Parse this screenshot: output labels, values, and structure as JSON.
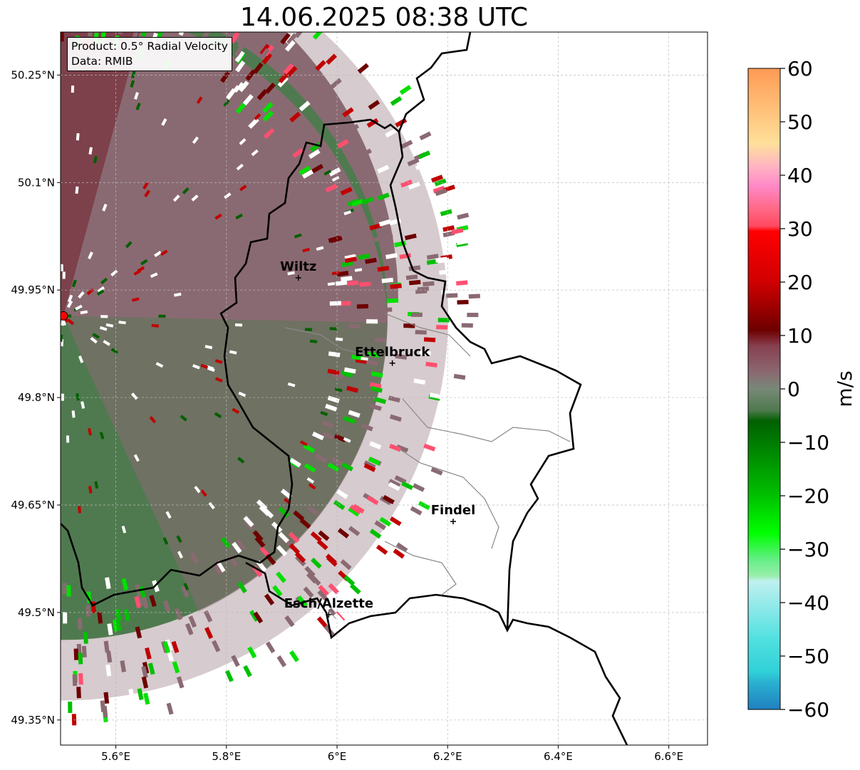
{
  "title": "14.06.2025 08:38 UTC",
  "info": {
    "product": "Product: 0.5° Radial Velocity",
    "data": "Data: RMIB"
  },
  "map": {
    "lon_range": [
      5.5,
      6.67
    ],
    "lat_range": [
      49.315,
      50.31
    ],
    "lon_ticks": [
      {
        "value": 5.6,
        "label": "5.6°E"
      },
      {
        "value": 5.8,
        "label": "5.8°E"
      },
      {
        "value": 6.0,
        "label": "6°E"
      },
      {
        "value": 6.2,
        "label": "6.2°E"
      },
      {
        "value": 6.4,
        "label": "6.4°E"
      },
      {
        "value": 6.6,
        "label": "6.6°E"
      }
    ],
    "lat_ticks": [
      {
        "value": 50.25,
        "label": "50.25°N"
      },
      {
        "value": 50.1,
        "label": "50.1°N"
      },
      {
        "value": 49.95,
        "label": "49.95°N"
      },
      {
        "value": 49.8,
        "label": "49.8°N"
      },
      {
        "value": 49.65,
        "label": "49.65°N"
      },
      {
        "value": 49.5,
        "label": "49.5°N"
      },
      {
        "value": 49.35,
        "label": "49.35°N"
      }
    ],
    "radar_site": {
      "lon": 5.505,
      "lat": 49.914
    },
    "cities": [
      {
        "name": "Wiltz",
        "lon": 5.93,
        "lat": 49.967
      },
      {
        "name": "Ettelbruck",
        "lon": 6.1,
        "lat": 49.848
      },
      {
        "name": "Findel",
        "lon": 6.21,
        "lat": 49.627
      },
      {
        "name": "Esch/Alzette",
        "lon": 5.985,
        "lat": 49.497
      }
    ]
  },
  "colorbar": {
    "label": "m/s",
    "min": -60,
    "max": 60,
    "ticks": [
      {
        "value": 60,
        "label": "60"
      },
      {
        "value": 50,
        "label": "50"
      },
      {
        "value": 40,
        "label": "40"
      },
      {
        "value": 30,
        "label": "30"
      },
      {
        "value": 20,
        "label": "20"
      },
      {
        "value": 10,
        "label": "10"
      },
      {
        "value": 0,
        "label": "0"
      },
      {
        "value": -10,
        "label": "−10"
      },
      {
        "value": -20,
        "label": "−20"
      },
      {
        "value": -30,
        "label": "−30"
      },
      {
        "value": -40,
        "label": "−40"
      },
      {
        "value": -50,
        "label": "−50"
      },
      {
        "value": -60,
        "label": "−60"
      }
    ],
    "color_stops": [
      {
        "value": 60,
        "color": "#ff9a55"
      },
      {
        "value": 52,
        "color": "#ffc27a"
      },
      {
        "value": 46,
        "color": "#ffe09a"
      },
      {
        "value": 42,
        "color": "#ffb8c0"
      },
      {
        "value": 38,
        "color": "#ff88c8"
      },
      {
        "value": 34,
        "color": "#ff6b8a"
      },
      {
        "value": 30.5,
        "color": "#ff4a60"
      },
      {
        "value": 29.5,
        "color": "#ff0000"
      },
      {
        "value": 20,
        "color": "#d00000"
      },
      {
        "value": 11,
        "color": "#6e0000"
      },
      {
        "value": 8,
        "color": "#884050"
      },
      {
        "value": 3,
        "color": "#8a6a72"
      },
      {
        "value": 0,
        "color": "#778877"
      },
      {
        "value": -4,
        "color": "#4f7a4f"
      },
      {
        "value": -6,
        "color": "#006000"
      },
      {
        "value": -20,
        "color": "#00c000"
      },
      {
        "value": -27,
        "color": "#00ff00"
      },
      {
        "value": -32,
        "color": "#66ee88"
      },
      {
        "value": -35,
        "color": "#99eeaa"
      },
      {
        "value": -36,
        "color": "#c0f0f0"
      },
      {
        "value": -47,
        "color": "#50e0e0"
      },
      {
        "value": -53,
        "color": "#30d0d8"
      },
      {
        "value": -55,
        "color": "#2ab0d0"
      },
      {
        "value": -60,
        "color": "#2080c0"
      }
    ]
  },
  "colors": {
    "velocity_outbound_dark": "#7a3a44",
    "velocity_near_zero": "#8a6a72",
    "velocity_inbound_dark": "#4f7a4f",
    "radar_site_marker": "#ff0000"
  }
}
